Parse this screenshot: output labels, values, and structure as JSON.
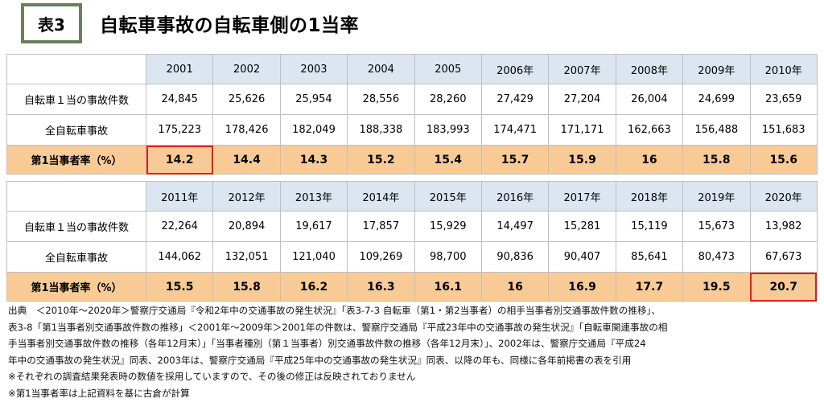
{
  "header": {
    "badge": "表3",
    "title": "自転車事故の自転車側の1当率"
  },
  "labels": {
    "accidents": "自転車１当の事故件数",
    "total": "全自転車事故",
    "rate": "第1当事者率（%）"
  },
  "colors": {
    "header_bg": "#dce6f1",
    "rate_bg": "#f8cb96",
    "highlight": "#e0201c",
    "badge_border": "#6b7f5e"
  },
  "table1": {
    "years": [
      "2001",
      "2002",
      "2003",
      "2004",
      "2005",
      "2006年",
      "2007年",
      "2008年",
      "2009年",
      "2010年"
    ],
    "accidents": [
      "24,845",
      "25,626",
      "25,954",
      "28,556",
      "28,260",
      "27,429",
      "27,204",
      "26,004",
      "24,699",
      "23,659"
    ],
    "total": [
      "175,223",
      "178,426",
      "182,049",
      "188,338",
      "183,993",
      "174,471",
      "171,171",
      "162,663",
      "156,488",
      "151,683"
    ],
    "rate": [
      "14.2",
      "14.4",
      "14.3",
      "15.2",
      "15.4",
      "15.7",
      "15.9",
      "16",
      "15.8",
      "15.6"
    ]
  },
  "table2": {
    "years": [
      "2011年",
      "2012年",
      "2013年",
      "2014年",
      "2015年",
      "2016年",
      "2017年",
      "2018年",
      "2019年",
      "2020年"
    ],
    "accidents": [
      "22,264",
      "20,894",
      "19,617",
      "17,857",
      "15,929",
      "14,497",
      "15,281",
      "15,119",
      "15,673",
      "13,982"
    ],
    "total": [
      "144,062",
      "132,051",
      "121,040",
      "109,269",
      "98,700",
      "90,836",
      "90,407",
      "85,641",
      "80,473",
      "67,673"
    ],
    "rate": [
      "15.5",
      "15.8",
      "16.2",
      "16.3",
      "16.1",
      "16",
      "16.9",
      "17.7",
      "19.5",
      "20.7"
    ]
  },
  "notes": [
    "出典　＜2010年〜2020年＞警察庁交通局『令和2年中の交通事故の発生状況』「表3-7-3 自転車（第1・第2当事者）の相手当事者別交通事故件数の推移」、",
    "表3-8「第1当事者別交通事故件数の推移」＜2001年〜2009年＞2001年の件数は、警察庁交通局『平成23年中の交通事故の発生状況』「自転車関連事故の相",
    "手当事者別交通事故件数の推移（各年12月末）」「当事者種別（第１当事者）別交通事故件数の推移（各年12月末）」、2002年は、警察庁交通局『平成24",
    "年中の交通事故の発生状況』同表、2003年は、警察庁交通局『平成25年中の交通事故の発生状況』同表、以降の年も、同様に各年前掲書の表を引用",
    "※それぞれの調査結果発表時の数値を採用していますので、その後の修正は反映されておりません",
    "※第1当事者率は上記資料を基に古倉が計算"
  ]
}
